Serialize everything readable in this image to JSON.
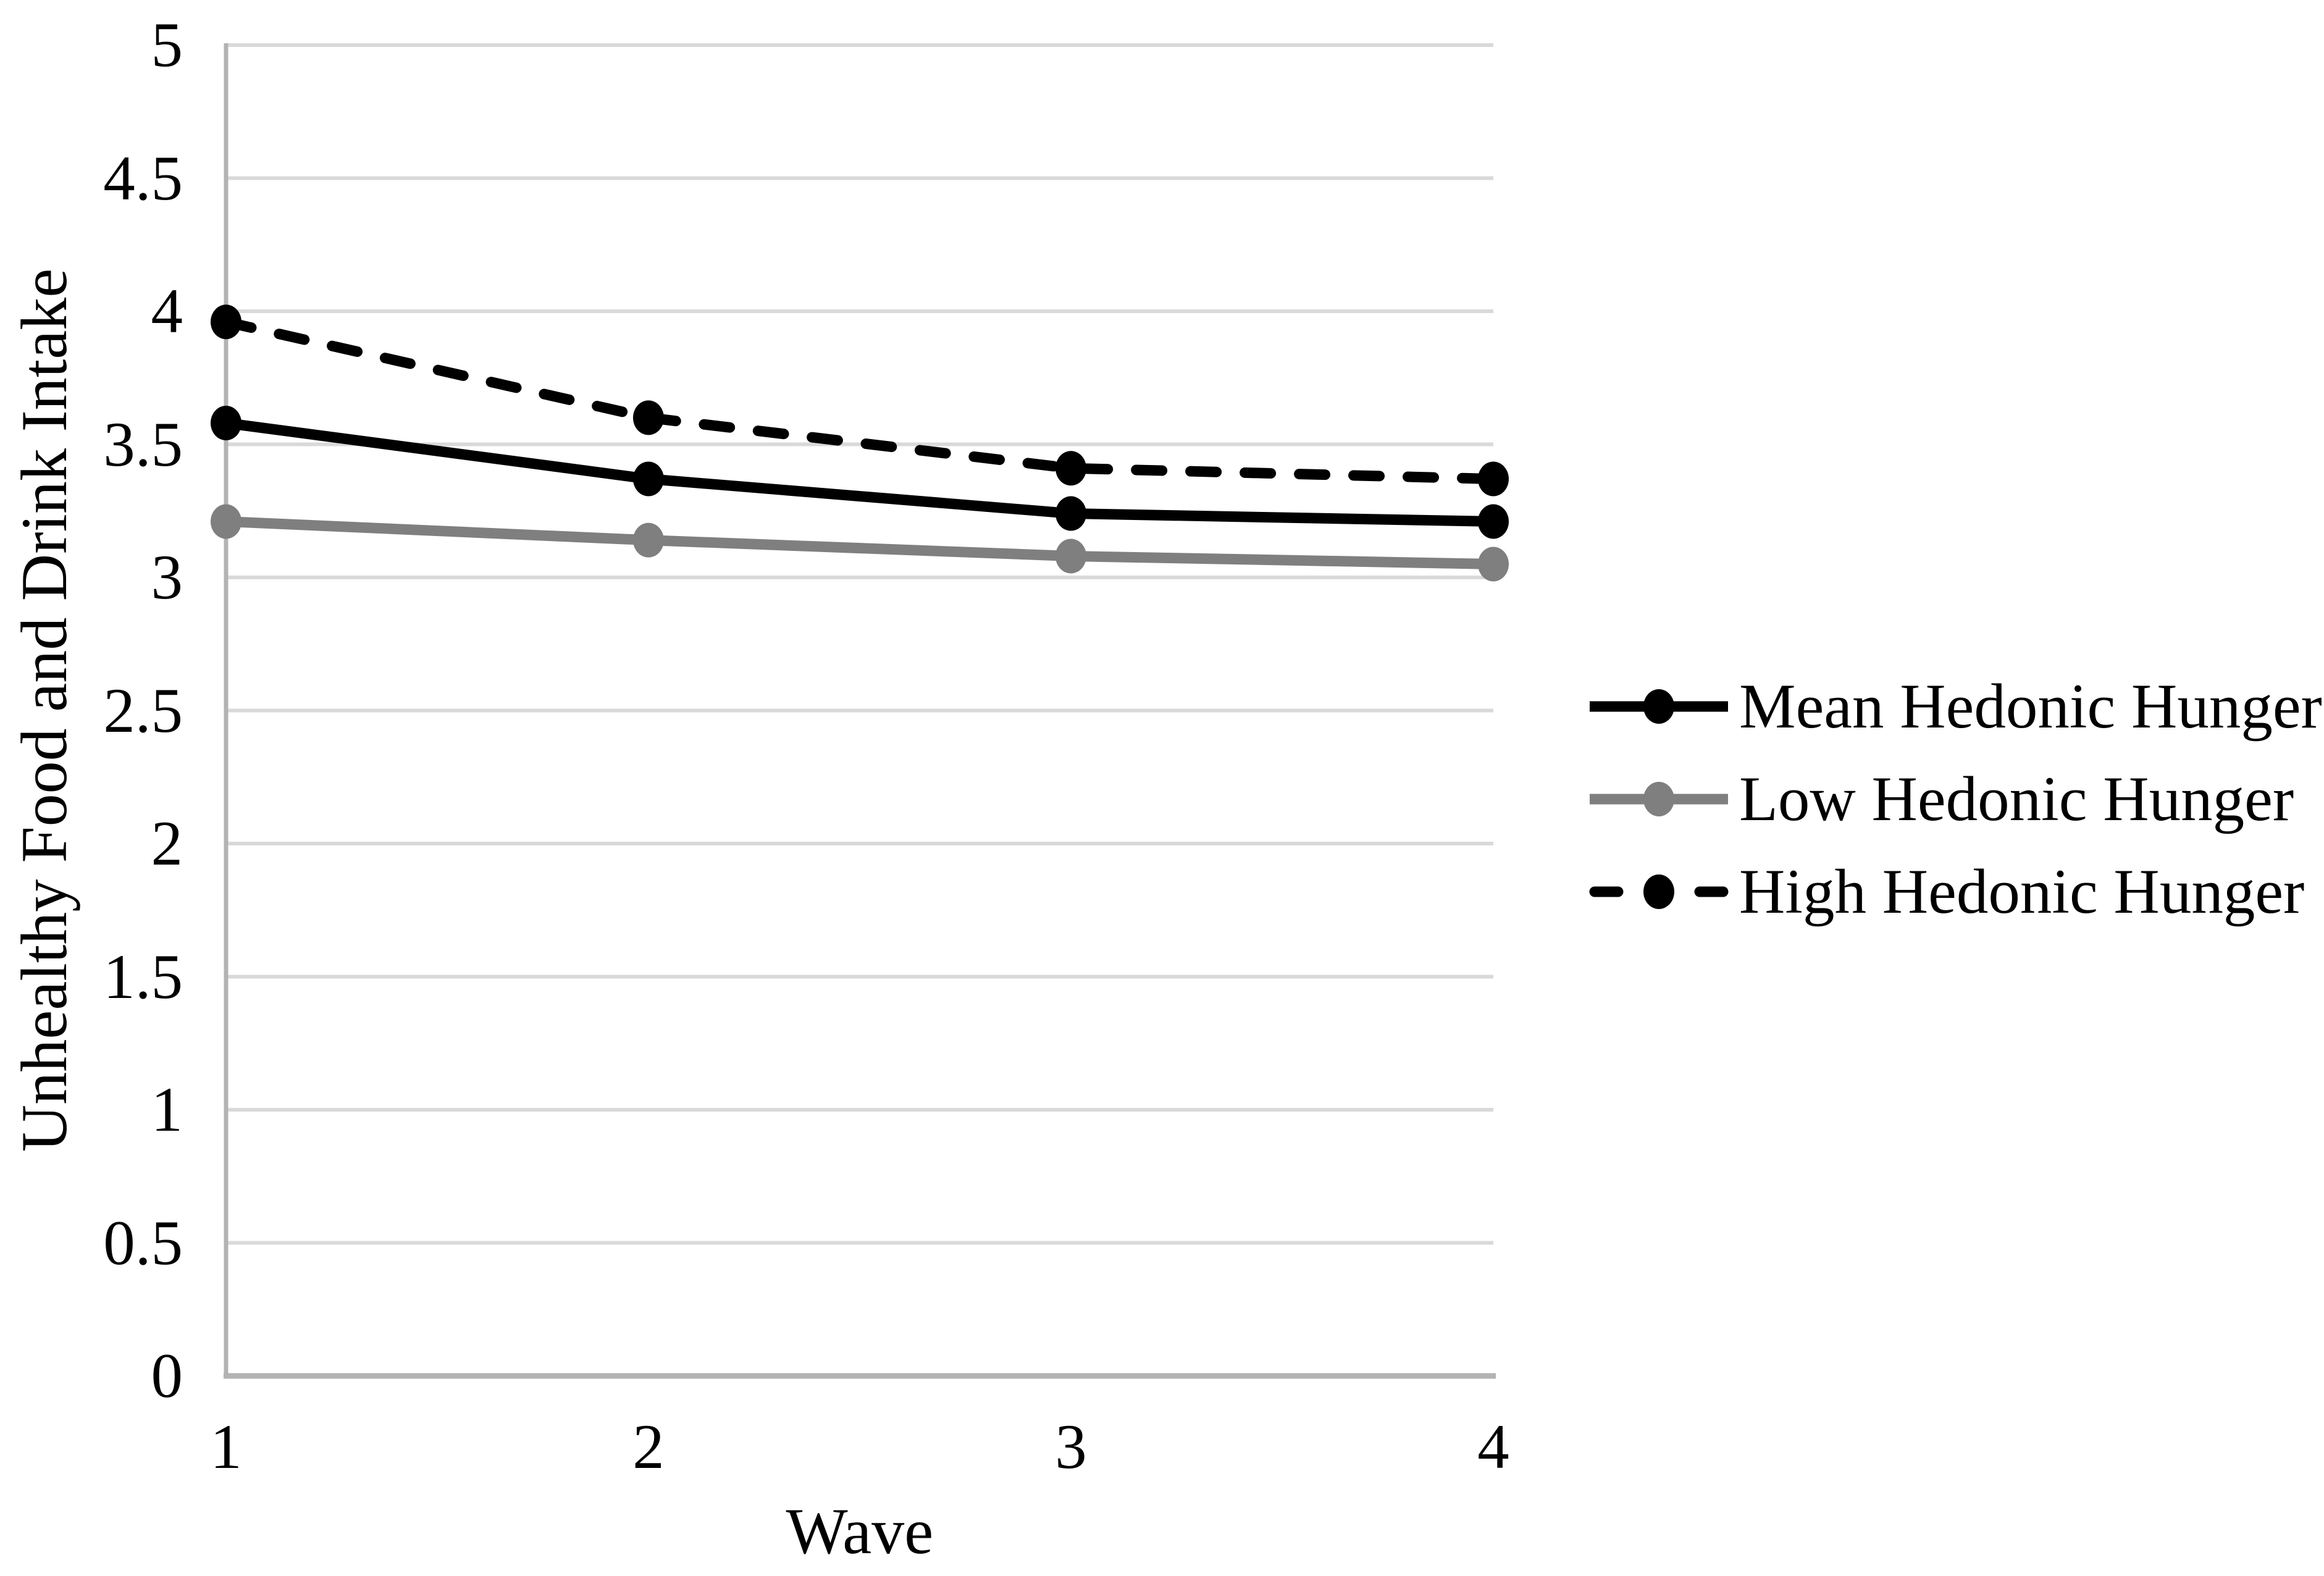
{
  "chart_data": {
    "type": "line",
    "x": [
      1,
      2,
      3,
      4
    ],
    "categories": [
      "1",
      "2",
      "3",
      "4"
    ],
    "series": [
      {
        "name": "Mean Hedonic Hunger",
        "values": [
          3.58,
          3.37,
          3.24,
          3.21
        ],
        "color": "#000000",
        "line_style": "solid",
        "marker": "circle"
      },
      {
        "name": "Low Hedonic Hunger",
        "values": [
          3.21,
          3.14,
          3.08,
          3.05
        ],
        "color": "#7f7f7f",
        "line_style": "solid",
        "marker": "circle"
      },
      {
        "name": "High Hedonic Hunger",
        "values": [
          3.96,
          3.6,
          3.41,
          3.37
        ],
        "color": "#000000",
        "line_style": "dashed",
        "marker": "circle"
      }
    ],
    "title": "",
    "xlabel": "Wave",
    "ylabel": "Unhealthy Food and Drink Intake",
    "xlim": [
      1,
      4
    ],
    "ylim": [
      0,
      5
    ],
    "y_tick_values": [
      0,
      0.5,
      1,
      1.5,
      2,
      2.5,
      3,
      3.5,
      4,
      4.5,
      5
    ],
    "y_ticks": [
      "0",
      "0.5",
      "1",
      "1.5",
      "2",
      "2.5",
      "3",
      "3.5",
      "4",
      "4.5",
      "5"
    ],
    "grid": "horizontal",
    "legend_position": "right"
  },
  "colors": {
    "background": "#ffffff",
    "gridline": "#d9d9d9",
    "axis_line": "#b3b3b3",
    "text": "#000000"
  }
}
